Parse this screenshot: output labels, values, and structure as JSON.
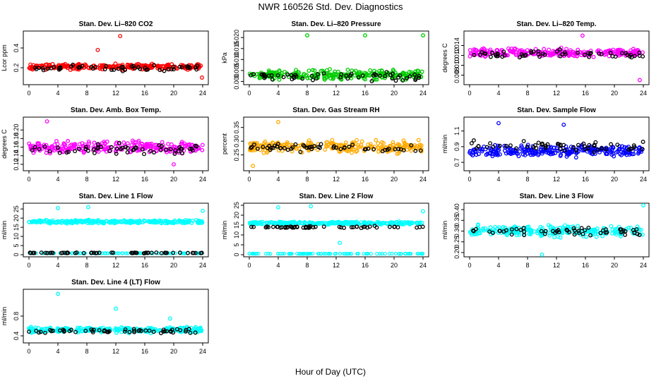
{
  "figure": {
    "title": "NWR  160526  Std. Dev. Diagnostics",
    "xlabel": "Hour of Day (UTC)"
  },
  "chart_data": [
    {
      "type": "scatter",
      "title": "Stan. Dev. Li–820 CO2",
      "ylabel": "Lcor ppm",
      "color": "#ff0000",
      "xlim": [
        0,
        24
      ],
      "xticks": [
        "0",
        "4",
        "8",
        "12",
        "16",
        "20",
        "24"
      ],
      "ylim": [
        0.05,
        0.55
      ],
      "yticks": [
        "0.2",
        "0.4"
      ],
      "yticks_values": [
        0.2,
        0.4
      ],
      "base": 0.21,
      "spread": 0.04,
      "black_base": 0.2,
      "black_spread": 0.04,
      "outliers": [
        [
          12.6,
          0.52
        ],
        [
          9.5,
          0.38
        ],
        [
          23.9,
          0.1
        ]
      ]
    },
    {
      "type": "scatter",
      "title": "Stan. Dev. Li–820 Pressure",
      "ylabel": "kPa",
      "color": "#00cc00",
      "xlim": [
        0,
        24
      ],
      "xticks": [
        "0",
        "4",
        "8",
        "12",
        "16",
        "20",
        "24"
      ],
      "ylim": [
        -0.0005,
        0.022
      ],
      "yticks": [
        "0.000",
        "0.005",
        "0.010",
        "0.015",
        "0.020"
      ],
      "yticks_values": [
        0,
        0.005,
        0.01,
        0.015,
        0.02
      ],
      "base": 0.003,
      "spread": 0.003,
      "black_base": 0.002,
      "black_spread": 0.003,
      "outliers": [
        [
          8,
          0.021
        ],
        [
          16,
          0.021
        ],
        [
          24,
          0.021
        ]
      ]
    },
    {
      "type": "scatter",
      "title": "Stan. Dev. Li–820 Temp.",
      "ylabel": "degrees C",
      "color": "#ff00ff",
      "xlim": [
        0,
        24
      ],
      "xticks": [
        "0",
        "4",
        "8",
        "12",
        "16",
        "20",
        "24"
      ],
      "ylim": [
        0.0065,
        0.0165
      ],
      "yticks": [
        "0.008",
        "0.010",
        "0.012",
        "0.014"
      ],
      "yticks_values": [
        0.008,
        0.01,
        0.012,
        0.014
      ],
      "base": 0.0125,
      "spread": 0.0012,
      "black_base": 0.0122,
      "black_spread": 0.0012,
      "outliers": [
        [
          23.5,
          0.007
        ],
        [
          15.6,
          0.016
        ]
      ]
    },
    {
      "type": "scatter",
      "title": "Stan. Dev. Amb. Box Temp.",
      "ylabel": "degrees C",
      "color": "#ff00ff",
      "xlim": [
        0,
        24
      ],
      "xticks": [
        "0",
        "4",
        "8",
        "12",
        "16",
        "20",
        "24"
      ],
      "ylim": [
        0.11,
        0.225
      ],
      "yticks": [
        "0.12",
        "0.14",
        "0.16",
        "0.18",
        "0.20"
      ],
      "yticks_values": [
        0.12,
        0.14,
        0.16,
        0.18,
        0.2
      ],
      "base": 0.16,
      "spread": 0.02,
      "black_base": 0.155,
      "black_spread": 0.02,
      "outliers": [
        [
          2.5,
          0.22
        ],
        [
          20,
          0.12
        ]
      ]
    },
    {
      "type": "scatter",
      "title": "Stan. Dev. Gas Stream RH",
      "ylabel": "percent",
      "color": "#ffaa00",
      "xlim": [
        0,
        24
      ],
      "xticks": [
        "0",
        "4",
        "8",
        "12",
        "16",
        "20",
        "24"
      ],
      "ylim": [
        0.2,
        0.38
      ],
      "yticks": [
        "0.25",
        "0.30",
        "0.35"
      ],
      "yticks_values": [
        0.25,
        0.3,
        0.35
      ],
      "base": 0.28,
      "spread": 0.03,
      "black_base": 0.275,
      "black_spread": 0.02,
      "outliers": [
        [
          4,
          0.37
        ],
        [
          0.5,
          0.21
        ]
      ]
    },
    {
      "type": "scatter",
      "title": "Stan. Dev. Sample Flow",
      "ylabel": "ml/min",
      "color": "#0000ff",
      "xlim": [
        0,
        24
      ],
      "xticks": [
        "0",
        "4",
        "8",
        "12",
        "16",
        "20",
        "24"
      ],
      "ylim": [
        0.62,
        1.25
      ],
      "yticks": [
        "0.7",
        "0.9",
        "1.1"
      ],
      "yticks_values": [
        0.7,
        0.9,
        1.1
      ],
      "base": 0.85,
      "spread": 0.1,
      "black_base": 0.9,
      "black_spread": 0.1,
      "outliers": [
        [
          4,
          1.2
        ],
        [
          13,
          1.18
        ]
      ]
    },
    {
      "type": "scatter",
      "title": "Stan. Dev. Line 1 Flow",
      "ylabel": "ml/min",
      "color": "#00ffff",
      "xlim": [
        0,
        24
      ],
      "xticks": [
        "0",
        "4",
        "8",
        "12",
        "16",
        "20",
        "24"
      ],
      "ylim": [
        0,
        27
      ],
      "yticks": [
        "0",
        "5",
        "10",
        "15",
        "20",
        "25"
      ],
      "yticks_values": [
        0,
        5,
        10,
        15,
        20,
        25
      ],
      "base": 18,
      "spread": 1.2,
      "black_base": 1,
      "black_spread": 0.3,
      "lower_band": 0.8,
      "outliers": [
        [
          4,
          25.5
        ],
        [
          8.2,
          26
        ],
        [
          24,
          24
        ]
      ]
    },
    {
      "type": "scatter",
      "title": "Stan. Dev. Line 2 Flow",
      "ylabel": "ml/min",
      "color": "#00ffff",
      "xlim": [
        0,
        24
      ],
      "xticks": [
        "0",
        "4",
        "8",
        "12",
        "16",
        "20",
        "24"
      ],
      "ylim": [
        0,
        25
      ],
      "yticks": [
        "0",
        "5",
        "10",
        "15",
        "20",
        "25"
      ],
      "yticks_values": [
        0,
        5,
        10,
        15,
        20,
        25
      ],
      "base": 16,
      "spread": 1,
      "black_base": 14,
      "black_spread": 0.7,
      "lower_band": 0.5,
      "outliers": [
        [
          4,
          24
        ],
        [
          8.5,
          24.5
        ],
        [
          12.5,
          6
        ],
        [
          24,
          22
        ]
      ]
    },
    {
      "type": "scatter",
      "title": "Stan. Dev. Line 3 Flow",
      "ylabel": "ml/min",
      "color": "#00ffff",
      "xlim": [
        0,
        24
      ],
      "xticks": [
        "0",
        "4",
        "8",
        "12",
        "16",
        "20",
        "24"
      ],
      "ylim": [
        0.19,
        0.42
      ],
      "yticks": [
        "0.20",
        "0.25",
        "0.30",
        "0.35",
        "0.40"
      ],
      "yticks_values": [
        0.2,
        0.25,
        0.3,
        0.35,
        0.4
      ],
      "base": 0.3,
      "spread": 0.035,
      "black_base": 0.3,
      "black_spread": 0.035,
      "outliers": [
        [
          24,
          0.42
        ],
        [
          10,
          0.19
        ]
      ]
    },
    {
      "type": "scatter",
      "title": "Stan. Dev. Line 4 (LT) Flow",
      "ylabel": "ml/min",
      "color": "#00ffff",
      "xlim": [
        0,
        24
      ],
      "xticks": [
        "0",
        "4",
        "8",
        "12",
        "16",
        "20",
        "24"
      ],
      "ylim": [
        0.3,
        1.3
      ],
      "yticks": [
        "0.4",
        "0.8"
      ],
      "yticks_values": [
        0.4,
        0.8
      ],
      "base": 0.52,
      "spread": 0.07,
      "black_base": 0.5,
      "black_spread": 0.07,
      "outliers": [
        [
          4,
          1.25
        ],
        [
          12,
          0.95
        ],
        [
          19.5,
          0.75
        ]
      ]
    }
  ]
}
